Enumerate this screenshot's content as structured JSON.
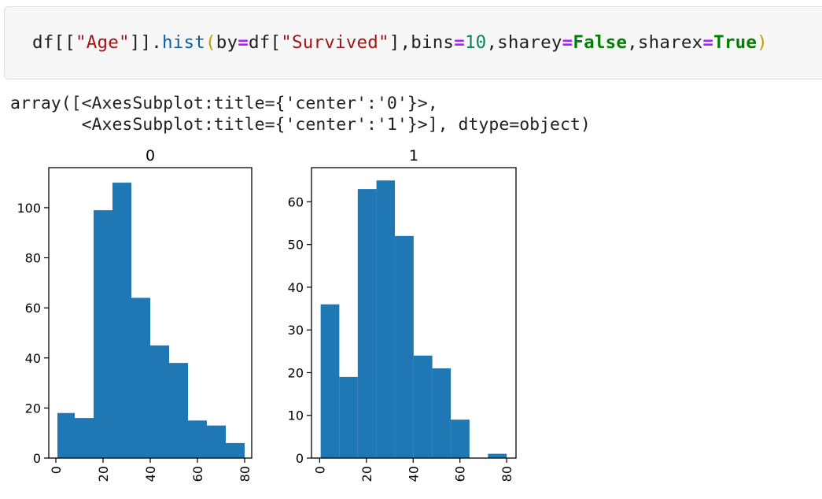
{
  "input_cell": {
    "code_tokens": [
      {
        "text": "df[[",
        "cls": ""
      },
      {
        "text": "\"Age\"",
        "cls": "tok-str"
      },
      {
        "text": "]].",
        "cls": ""
      },
      {
        "text": "hist",
        "cls": "tok-fn"
      },
      {
        "text": "(",
        "cls": "tok-paren"
      },
      {
        "text": "by",
        "cls": ""
      },
      {
        "text": "=",
        "cls": "tok-op"
      },
      {
        "text": "df[",
        "cls": ""
      },
      {
        "text": "\"Survived\"",
        "cls": "tok-str"
      },
      {
        "text": "],bins",
        "cls": ""
      },
      {
        "text": "=",
        "cls": "tok-op"
      },
      {
        "text": "10",
        "cls": "tok-num"
      },
      {
        "text": ",sharey",
        "cls": ""
      },
      {
        "text": "=",
        "cls": "tok-op"
      },
      {
        "text": "False",
        "cls": "tok-kw"
      },
      {
        "text": ",sharex",
        "cls": ""
      },
      {
        "text": "=",
        "cls": "tok-op"
      },
      {
        "text": "True",
        "cls": "tok-kw"
      },
      {
        "text": ")",
        "cls": "tok-paren"
      }
    ]
  },
  "output": {
    "repr_line1": "array([<AxesSubplot:title={'center':'0'}>,",
    "repr_line2": "       <AxesSubplot:title={'center':'1'}>], dtype=object)"
  },
  "chart_data": [
    {
      "type": "bar",
      "title": "0",
      "xlabel": "",
      "ylabel": "",
      "bin_edges": [
        0.67,
        8.0,
        16.0,
        24.0,
        32.0,
        40.0,
        48.0,
        56.0,
        64.0,
        72.0,
        80.0
      ],
      "values": [
        18,
        16,
        99,
        110,
        64,
        45,
        38,
        15,
        13,
        6
      ],
      "xlim": [
        -3,
        83
      ],
      "ylim": [
        0,
        116
      ],
      "xticks": [
        "0",
        "20",
        "40",
        "60",
        "80"
      ],
      "yticks": [
        "0",
        "20",
        "40",
        "60",
        "80",
        "100"
      ],
      "color": "#1f77b4",
      "grid": false
    },
    {
      "type": "bar",
      "title": "1",
      "xlabel": "",
      "ylabel": "",
      "bin_edges": [
        0.42,
        8.4,
        16.3,
        24.3,
        32.2,
        40.2,
        48.2,
        56.1,
        64.1,
        72.0,
        80.0
      ],
      "values": [
        36,
        19,
        63,
        65,
        52,
        24,
        21,
        9,
        0,
        1
      ],
      "xlim": [
        -3.5,
        84
      ],
      "ylim": [
        0,
        68
      ],
      "xticks": [
        "0",
        "20",
        "40",
        "60",
        "80"
      ],
      "yticks": [
        "0",
        "10",
        "20",
        "30",
        "40",
        "50",
        "60"
      ],
      "color": "#1f77b4",
      "grid": false
    }
  ]
}
